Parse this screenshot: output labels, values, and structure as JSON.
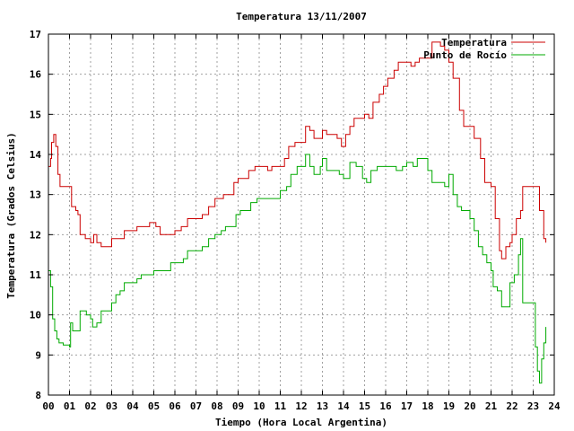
{
  "chart_data": {
    "type": "line",
    "title": "Temperatura 13/11/2007",
    "xlabel": "Tiempo (Hora Local Argentina)",
    "ylabel": "Temperatura (Grados Celsius)",
    "xlim": [
      0,
      24
    ],
    "ylim": [
      8,
      17
    ],
    "x_ticks": [
      "00",
      "01",
      "02",
      "03",
      "04",
      "05",
      "06",
      "07",
      "08",
      "09",
      "10",
      "11",
      "12",
      "13",
      "14",
      "15",
      "16",
      "17",
      "18",
      "19",
      "20",
      "21",
      "22",
      "23",
      "24"
    ],
    "y_ticks": [
      "8",
      "9",
      "10",
      "11",
      "12",
      "13",
      "14",
      "15",
      "16",
      "17"
    ],
    "grid": true,
    "legend_position": "top-right",
    "series": [
      {
        "name": "Temperatura",
        "color": "#cc0000",
        "points": [
          [
            0.0,
            13.7
          ],
          [
            0.1,
            13.9
          ],
          [
            0.15,
            14.3
          ],
          [
            0.25,
            14.5
          ],
          [
            0.35,
            14.2
          ],
          [
            0.45,
            13.5
          ],
          [
            0.55,
            13.2
          ],
          [
            0.7,
            13.2
          ],
          [
            1.0,
            13.2
          ],
          [
            1.1,
            12.7
          ],
          [
            1.3,
            12.6
          ],
          [
            1.4,
            12.5
          ],
          [
            1.5,
            12.0
          ],
          [
            1.75,
            11.9
          ],
          [
            2.0,
            11.8
          ],
          [
            2.15,
            12.0
          ],
          [
            2.3,
            11.8
          ],
          [
            2.5,
            11.7
          ],
          [
            2.8,
            11.7
          ],
          [
            3.0,
            11.9
          ],
          [
            3.3,
            11.9
          ],
          [
            3.6,
            12.1
          ],
          [
            4.0,
            12.1
          ],
          [
            4.2,
            12.2
          ],
          [
            4.5,
            12.2
          ],
          [
            4.8,
            12.3
          ],
          [
            5.1,
            12.2
          ],
          [
            5.3,
            12.0
          ],
          [
            5.6,
            12.0
          ],
          [
            6.0,
            12.1
          ],
          [
            6.3,
            12.2
          ],
          [
            6.6,
            12.4
          ],
          [
            7.0,
            12.4
          ],
          [
            7.3,
            12.5
          ],
          [
            7.6,
            12.7
          ],
          [
            7.9,
            12.9
          ],
          [
            8.3,
            13.0
          ],
          [
            8.6,
            13.0
          ],
          [
            8.8,
            13.3
          ],
          [
            9.0,
            13.4
          ],
          [
            9.3,
            13.4
          ],
          [
            9.5,
            13.6
          ],
          [
            9.8,
            13.7
          ],
          [
            10.2,
            13.7
          ],
          [
            10.4,
            13.6
          ],
          [
            10.6,
            13.7
          ],
          [
            11.0,
            13.7
          ],
          [
            11.2,
            13.9
          ],
          [
            11.4,
            14.2
          ],
          [
            11.7,
            14.3
          ],
          [
            12.0,
            14.3
          ],
          [
            12.2,
            14.7
          ],
          [
            12.4,
            14.6
          ],
          [
            12.6,
            14.4
          ],
          [
            12.8,
            14.4
          ],
          [
            13.0,
            14.6
          ],
          [
            13.2,
            14.5
          ],
          [
            13.4,
            14.5
          ],
          [
            13.7,
            14.4
          ],
          [
            13.9,
            14.2
          ],
          [
            14.1,
            14.5
          ],
          [
            14.3,
            14.7
          ],
          [
            14.5,
            14.9
          ],
          [
            14.8,
            14.9
          ],
          [
            15.0,
            15.0
          ],
          [
            15.2,
            14.9
          ],
          [
            15.4,
            15.3
          ],
          [
            15.7,
            15.5
          ],
          [
            15.9,
            15.7
          ],
          [
            16.1,
            15.9
          ],
          [
            16.4,
            16.1
          ],
          [
            16.6,
            16.3
          ],
          [
            17.0,
            16.3
          ],
          [
            17.2,
            16.2
          ],
          [
            17.4,
            16.3
          ],
          [
            17.6,
            16.4
          ],
          [
            17.8,
            16.4
          ],
          [
            18.0,
            16.4
          ],
          [
            18.2,
            16.8
          ],
          [
            18.4,
            16.8
          ],
          [
            18.6,
            16.7
          ],
          [
            18.8,
            16.6
          ],
          [
            19.0,
            16.3
          ],
          [
            19.2,
            15.9
          ],
          [
            19.5,
            15.1
          ],
          [
            19.7,
            14.7
          ],
          [
            20.0,
            14.7
          ],
          [
            20.2,
            14.4
          ],
          [
            20.5,
            13.9
          ],
          [
            20.7,
            13.3
          ],
          [
            21.0,
            13.2
          ],
          [
            21.2,
            12.4
          ],
          [
            21.4,
            11.6
          ],
          [
            21.5,
            11.4
          ],
          [
            21.7,
            11.7
          ],
          [
            21.9,
            11.8
          ],
          [
            22.0,
            12.0
          ],
          [
            22.2,
            12.4
          ],
          [
            22.4,
            12.6
          ],
          [
            22.5,
            13.2
          ],
          [
            23.0,
            13.2
          ],
          [
            23.2,
            13.2
          ],
          [
            23.3,
            12.6
          ],
          [
            23.5,
            11.9
          ],
          [
            23.6,
            11.8
          ]
        ]
      },
      {
        "name": "Punto de Rocío",
        "color": "#00aa00",
        "points": [
          [
            0.0,
            11.1
          ],
          [
            0.1,
            10.7
          ],
          [
            0.2,
            9.9
          ],
          [
            0.3,
            9.6
          ],
          [
            0.4,
            9.4
          ],
          [
            0.5,
            9.3
          ],
          [
            0.7,
            9.25
          ],
          [
            1.0,
            9.2
          ],
          [
            1.05,
            9.8
          ],
          [
            1.15,
            9.6
          ],
          [
            1.4,
            9.6
          ],
          [
            1.5,
            10.1
          ],
          [
            1.8,
            10.0
          ],
          [
            2.0,
            9.9
          ],
          [
            2.1,
            9.7
          ],
          [
            2.3,
            9.8
          ],
          [
            2.5,
            10.1
          ],
          [
            2.8,
            10.1
          ],
          [
            3.0,
            10.3
          ],
          [
            3.2,
            10.5
          ],
          [
            3.4,
            10.6
          ],
          [
            3.6,
            10.8
          ],
          [
            3.9,
            10.8
          ],
          [
            4.2,
            10.9
          ],
          [
            4.4,
            11.0
          ],
          [
            4.8,
            11.0
          ],
          [
            5.0,
            11.1
          ],
          [
            5.3,
            11.1
          ],
          [
            5.5,
            11.1
          ],
          [
            5.8,
            11.3
          ],
          [
            6.1,
            11.3
          ],
          [
            6.4,
            11.4
          ],
          [
            6.6,
            11.6
          ],
          [
            7.0,
            11.6
          ],
          [
            7.3,
            11.7
          ],
          [
            7.6,
            11.9
          ],
          [
            7.9,
            12.0
          ],
          [
            8.2,
            12.1
          ],
          [
            8.4,
            12.2
          ],
          [
            8.6,
            12.2
          ],
          [
            8.9,
            12.5
          ],
          [
            9.1,
            12.6
          ],
          [
            9.4,
            12.6
          ],
          [
            9.6,
            12.8
          ],
          [
            9.9,
            12.9
          ],
          [
            10.2,
            12.9
          ],
          [
            10.4,
            12.9
          ],
          [
            10.6,
            12.9
          ],
          [
            11.0,
            13.1
          ],
          [
            11.3,
            13.2
          ],
          [
            11.5,
            13.5
          ],
          [
            11.8,
            13.7
          ],
          [
            12.0,
            13.7
          ],
          [
            12.2,
            14.0
          ],
          [
            12.4,
            13.7
          ],
          [
            12.6,
            13.5
          ],
          [
            12.9,
            13.7
          ],
          [
            13.0,
            13.9
          ],
          [
            13.2,
            13.6
          ],
          [
            13.5,
            13.6
          ],
          [
            13.8,
            13.5
          ],
          [
            14.0,
            13.4
          ],
          [
            14.3,
            13.8
          ],
          [
            14.6,
            13.7
          ],
          [
            14.9,
            13.4
          ],
          [
            15.1,
            13.3
          ],
          [
            15.3,
            13.6
          ],
          [
            15.6,
            13.7
          ],
          [
            15.9,
            13.7
          ],
          [
            16.2,
            13.7
          ],
          [
            16.5,
            13.6
          ],
          [
            16.8,
            13.7
          ],
          [
            17.0,
            13.8
          ],
          [
            17.3,
            13.7
          ],
          [
            17.5,
            13.9
          ],
          [
            17.8,
            13.9
          ],
          [
            18.0,
            13.6
          ],
          [
            18.2,
            13.3
          ],
          [
            18.5,
            13.3
          ],
          [
            18.8,
            13.2
          ],
          [
            19.0,
            13.5
          ],
          [
            19.2,
            13.0
          ],
          [
            19.4,
            12.7
          ],
          [
            19.6,
            12.6
          ],
          [
            20.0,
            12.4
          ],
          [
            20.2,
            12.1
          ],
          [
            20.4,
            11.7
          ],
          [
            20.6,
            11.5
          ],
          [
            20.8,
            11.3
          ],
          [
            21.0,
            11.1
          ],
          [
            21.1,
            10.7
          ],
          [
            21.3,
            10.6
          ],
          [
            21.5,
            10.2
          ],
          [
            21.7,
            10.2
          ],
          [
            21.9,
            10.8
          ],
          [
            22.1,
            11.0
          ],
          [
            22.3,
            11.5
          ],
          [
            22.4,
            11.9
          ],
          [
            22.5,
            10.3
          ],
          [
            22.8,
            10.3
          ],
          [
            23.0,
            10.3
          ],
          [
            23.1,
            9.2
          ],
          [
            23.2,
            8.6
          ],
          [
            23.3,
            8.3
          ],
          [
            23.4,
            8.9
          ],
          [
            23.5,
            9.3
          ],
          [
            23.6,
            9.7
          ]
        ]
      }
    ]
  }
}
